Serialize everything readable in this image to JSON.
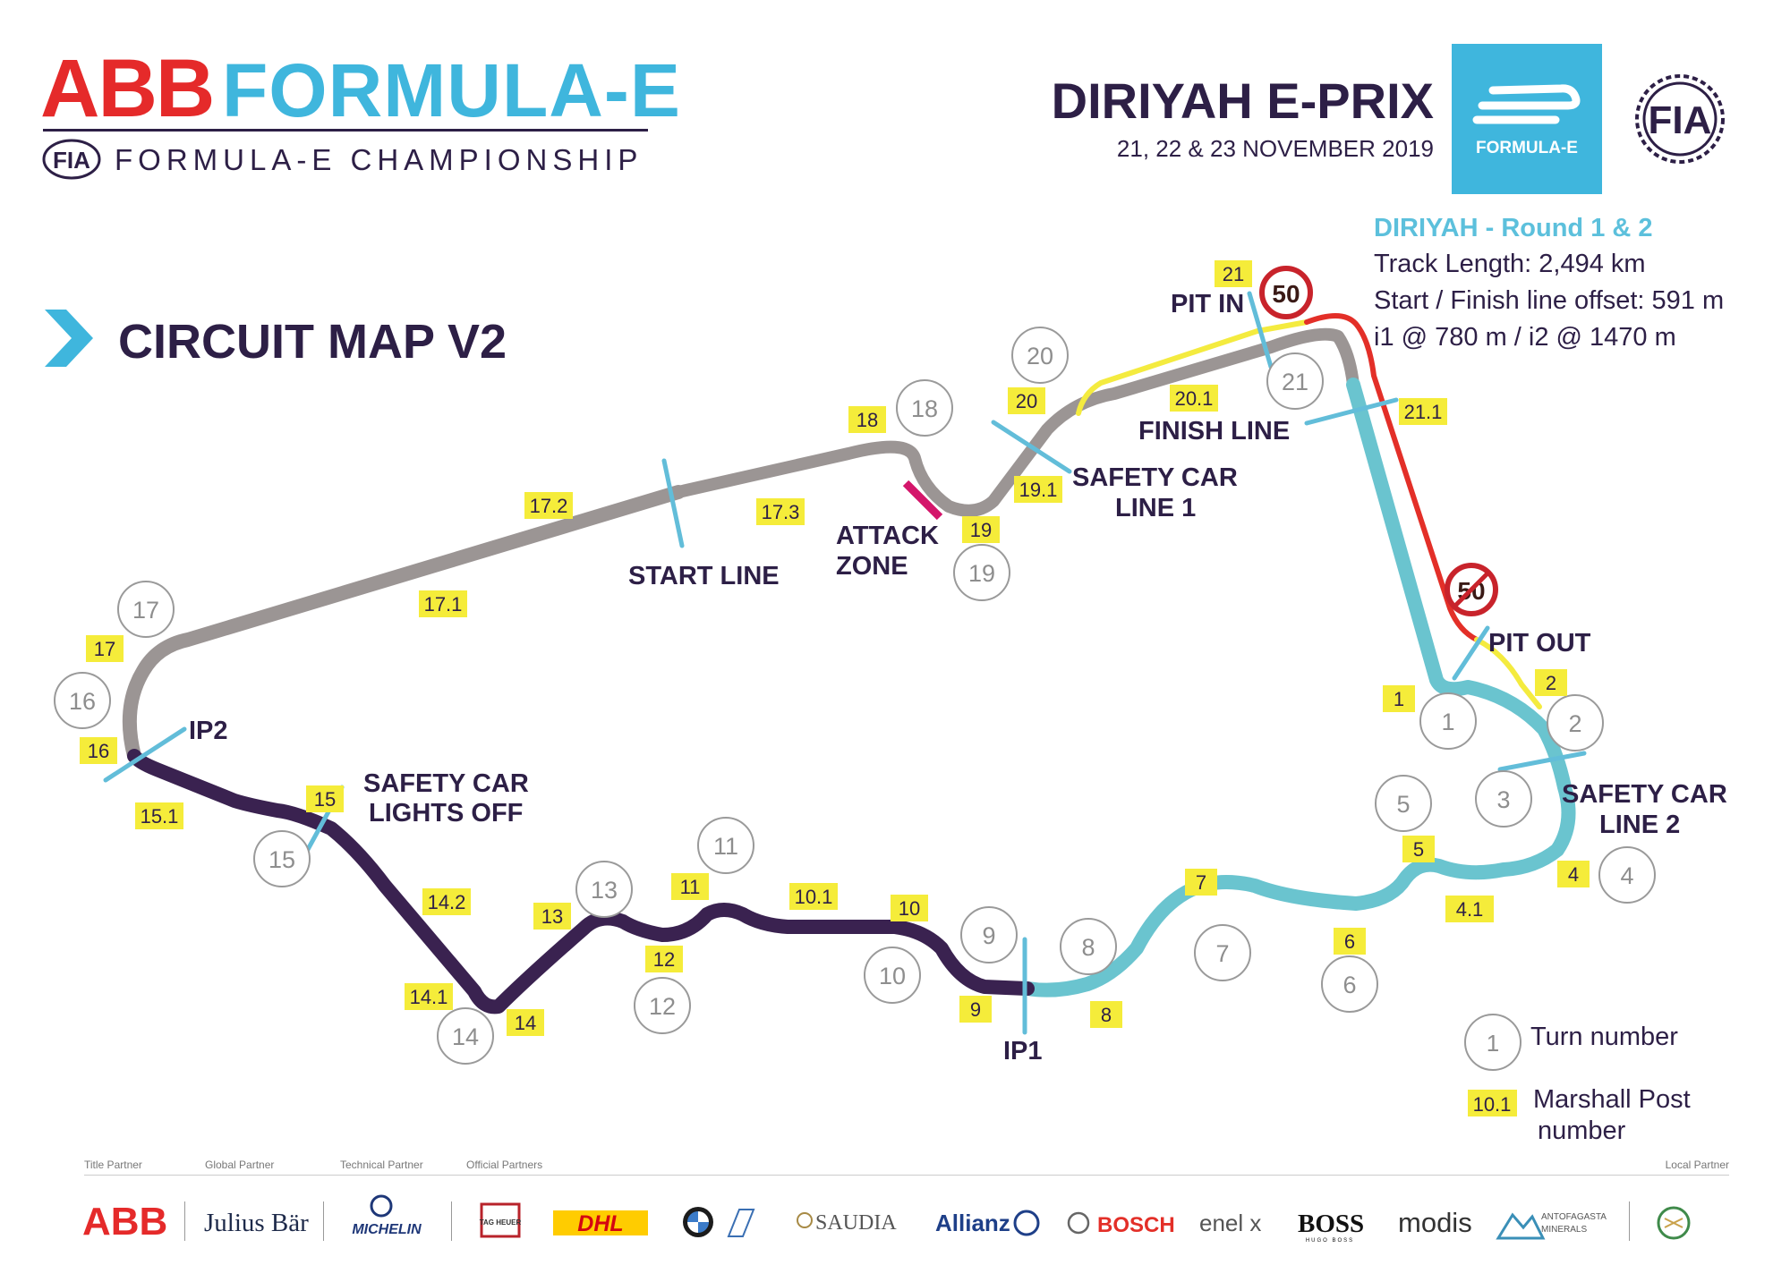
{
  "header": {
    "abb": "ABB",
    "formula_e": "FORMULA-E",
    "fia": "FIA",
    "championship": "FORMULA-E CHAMPIONSHIP",
    "event_title": "DIRIYAH E-PRIX",
    "event_dates": "21, 22 & 23 NOVEMBER 2019",
    "fe_logo_text": "FORMULA-E",
    "fia_logo_text": "FIA"
  },
  "circuit_map_title": "CIRCUIT MAP V2",
  "info": {
    "round": "DIRIYAH - Round 1 & 2",
    "track_length": "Track Length: 2,494 km",
    "start_finish_offset": "Start / Finish line offset: 591 m",
    "intermediates": "i1 @ 780 m / i2 @ 1470 m"
  },
  "speed_limit": {
    "value": "50"
  },
  "labels": {
    "pit_in": "PIT IN",
    "finish_line": "FINISH LINE",
    "pit_out": "PIT OUT",
    "start_line": "START LINE",
    "attack_zone_1": "ATTACK",
    "attack_zone_2": "ZONE",
    "safety_car_line_1_a": "SAFETY CAR",
    "safety_car_line_1_b": "LINE 1",
    "safety_car_line_2_a": "SAFETY CAR",
    "safety_car_line_2_b": "LINE 2",
    "safety_car_lights_off_a": "SAFETY CAR",
    "safety_car_lights_off_b": "LIGHTS OFF",
    "ip1": "IP1",
    "ip2": "IP2"
  },
  "turns": [
    "1",
    "2",
    "3",
    "4",
    "5",
    "6",
    "7",
    "8",
    "9",
    "10",
    "11",
    "12",
    "13",
    "14",
    "15",
    "16",
    "17",
    "18",
    "19",
    "20",
    "21"
  ],
  "marshal_posts": [
    "1",
    "2",
    "4",
    "4.1",
    "5",
    "6",
    "7",
    "8",
    "9",
    "10",
    "10.1",
    "11",
    "12",
    "13",
    "14",
    "14.1",
    "14.2",
    "15",
    "15.1",
    "16",
    "17",
    "17.1",
    "17.2",
    "17.3",
    "18",
    "19",
    "19.1",
    "20",
    "20.1",
    "21",
    "21.1"
  ],
  "legend": {
    "turn_example": "1",
    "turn_label": "Turn number",
    "post_example": "10.1",
    "post_label_1": "Marshall Post",
    "post_label_2": "number"
  },
  "sponsors": {
    "categories": [
      "Title Partner",
      "Global Partner",
      "Technical Partner",
      "Official Partners",
      "Local Partner"
    ],
    "logos": [
      "ABB",
      "Julius Bär",
      "MICHELIN",
      "TAG HEUER",
      "DHL",
      "SAUDIA",
      "Allianz",
      "BOSCH",
      "enel x",
      "BOSS",
      "HUGO BOSS",
      "modis",
      "ANTOFAGASTA",
      "MINERALS"
    ]
  },
  "colors": {
    "abb_red": "#e52a2a",
    "fe_blue": "#3fb6dd",
    "dark_navy": "#2d1f46",
    "track_grey": "#9b9594",
    "track_teal": "#6ac4cf",
    "track_purple": "#3a2250",
    "pit_red": "#e32f28",
    "pit_yellow": "#f4eb3f",
    "line_blue": "#62bdd9",
    "post_yellow": "#f5ec3a",
    "attack_magenta": "#d4166b"
  }
}
